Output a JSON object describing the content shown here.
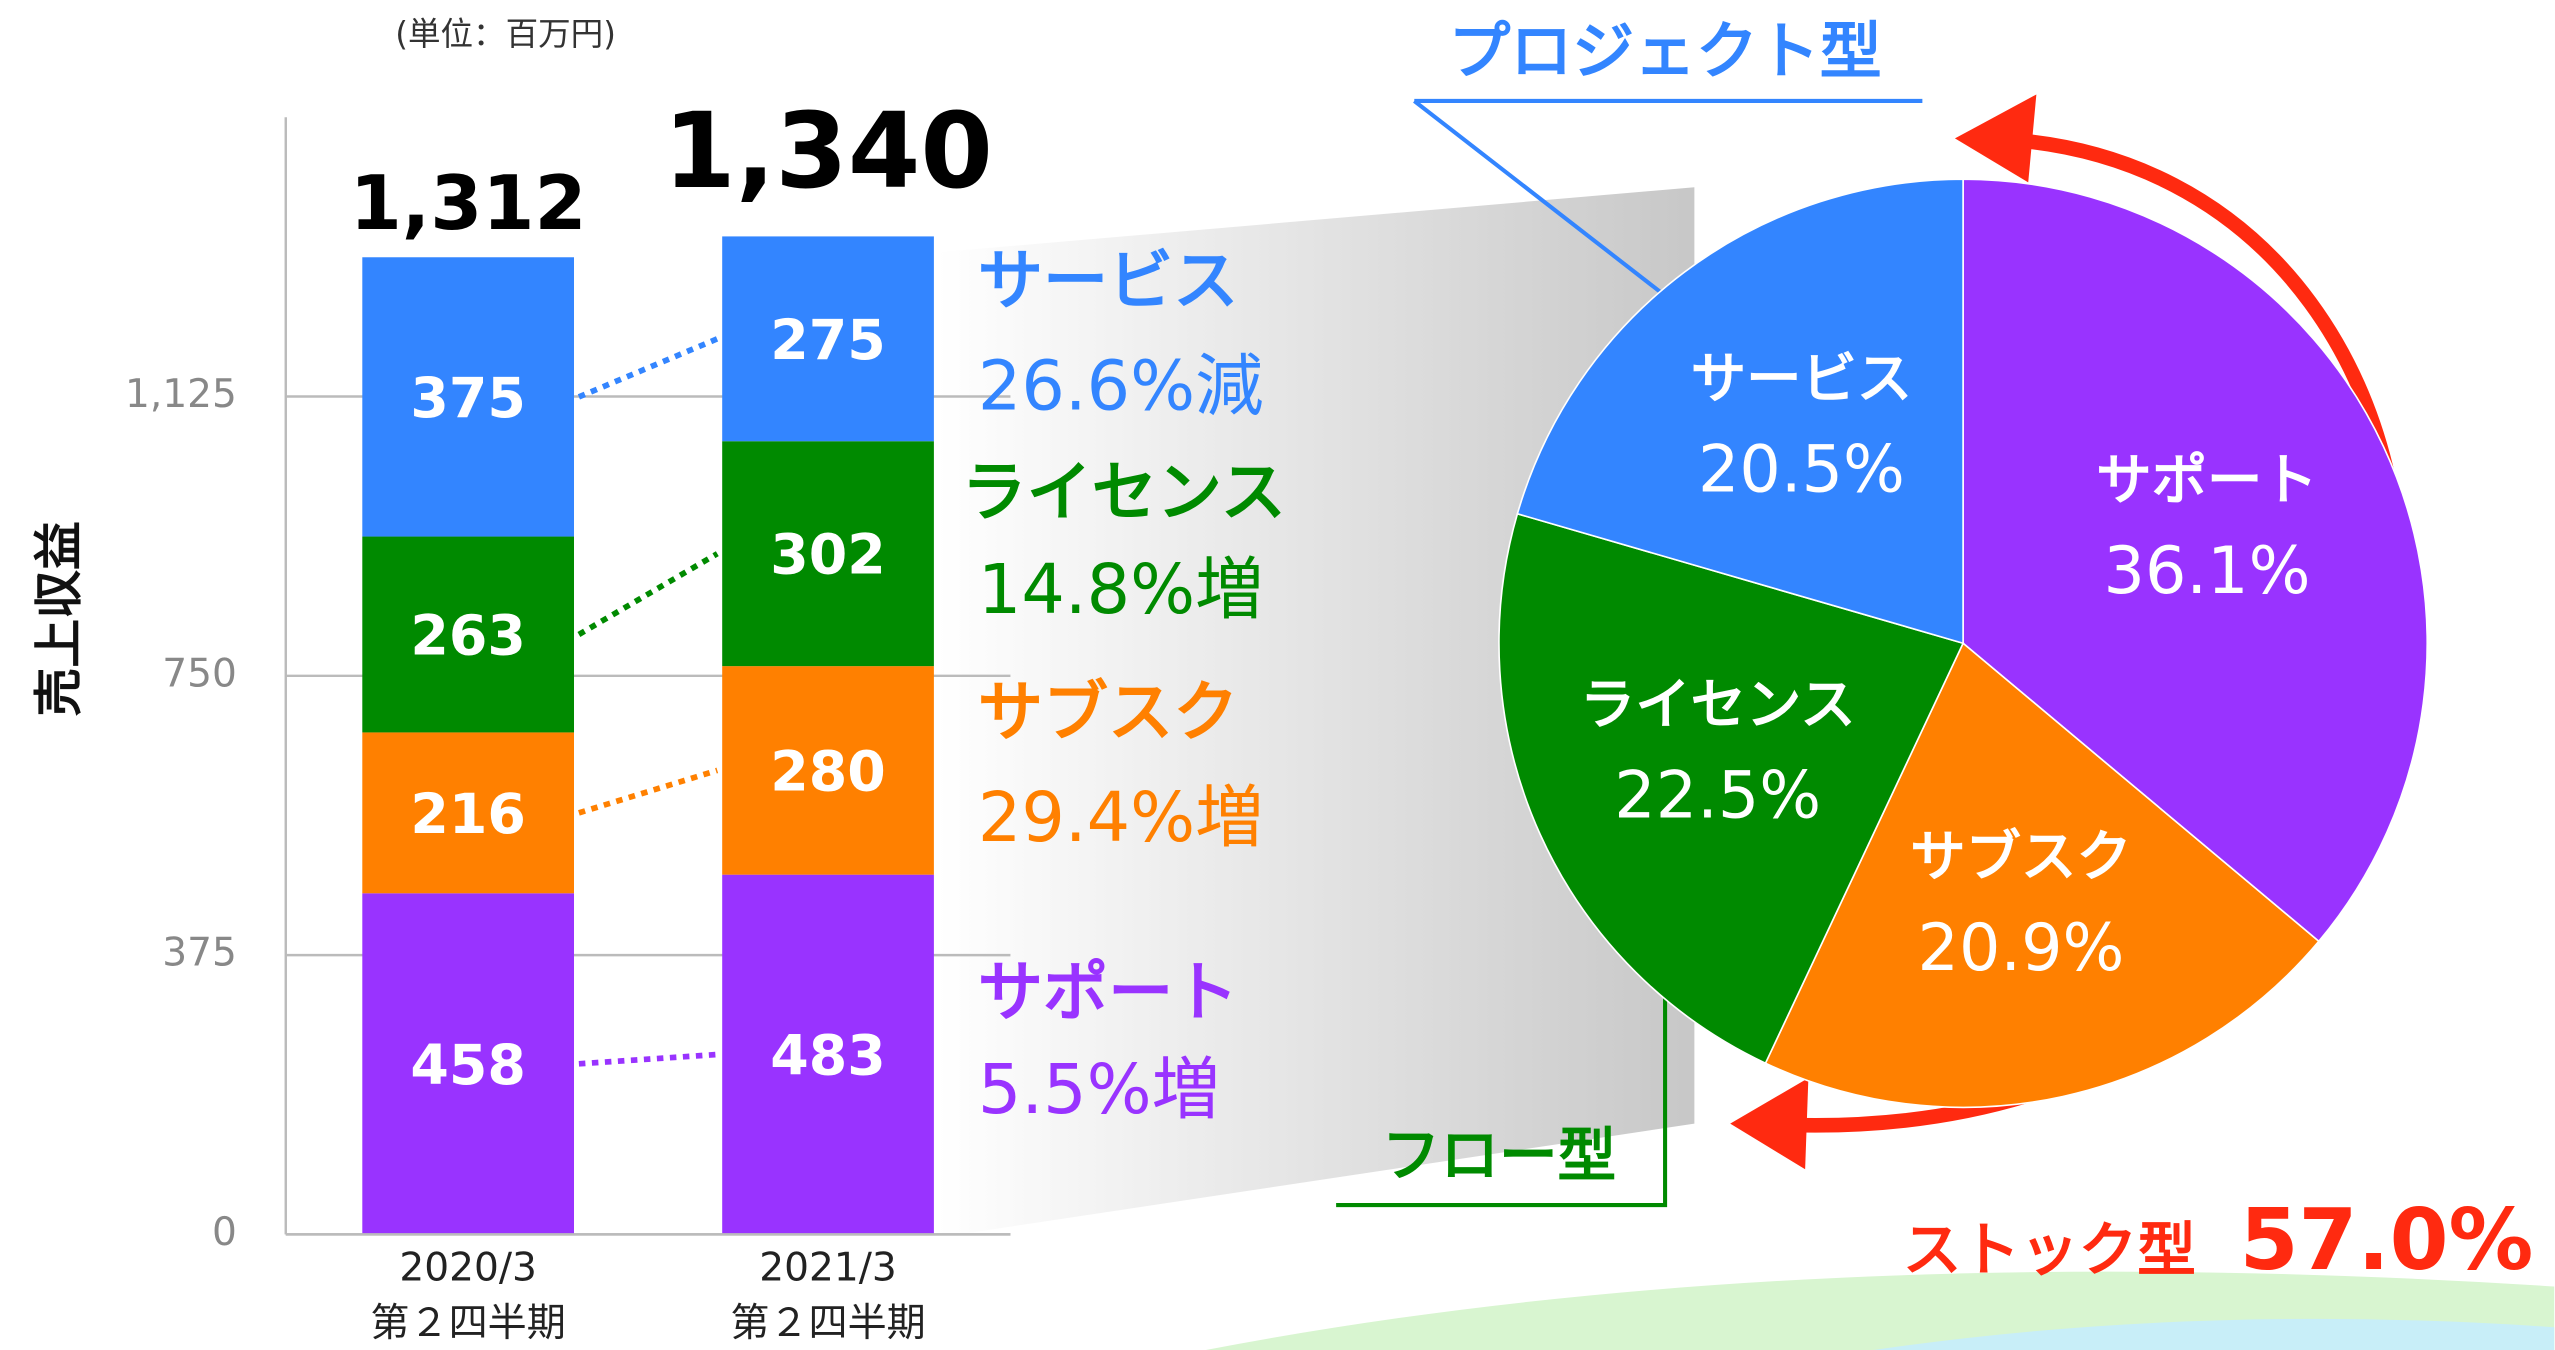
{
  "unit_note": "(単位：百万円)",
  "chart_data": [
    {
      "type": "bar",
      "stacked": true,
      "y_label": "売上収益",
      "categories": [
        [
          "2020/3",
          "第２四半期"
        ],
        [
          "2021/3",
          "第２四半期"
        ]
      ],
      "series": [
        {
          "name": "サポート",
          "color": "#9933ff",
          "values": [
            458,
            483
          ]
        },
        {
          "name": "サブスク",
          "color": "#ff8000",
          "values": [
            216,
            280
          ]
        },
        {
          "name": "ライセンス",
          "color": "#008a00",
          "values": [
            263,
            302
          ]
        },
        {
          "name": "サービス",
          "color": "#3385ff",
          "values": [
            375,
            275
          ]
        }
      ],
      "totals": {
        "values": [
          1312,
          1340
        ],
        "value_labels": [
          "1,312",
          "1,340"
        ]
      },
      "changes": [
        "5.5%増",
        "29.4%増",
        "14.8%増",
        "26.6%減"
      ],
      "ylim": [
        0,
        1500
      ],
      "yticks": [
        0,
        375,
        750,
        {
          "value": 1125,
          "label": "1,125"
        }
      ],
      "grid": true
    },
    {
      "type": "pie",
      "categories": [
        "サポート",
        "サブスク",
        "ライセンス",
        "サービス"
      ],
      "values": [
        36.1,
        20.9,
        22.5,
        20.5
      ],
      "value_labels": [
        "36.1%",
        "20.9%",
        "22.5%",
        "20.5%"
      ],
      "colors": [
        "#9933ff",
        "#ff8000",
        "#008a00",
        "#3385ff"
      ],
      "groups": {
        "project": "プロジェクト型",
        "flow": "フロー型",
        "stock": {
          "label": "ストック型",
          "value": 57.0,
          "value_label": "57.0%"
        }
      }
    }
  ]
}
